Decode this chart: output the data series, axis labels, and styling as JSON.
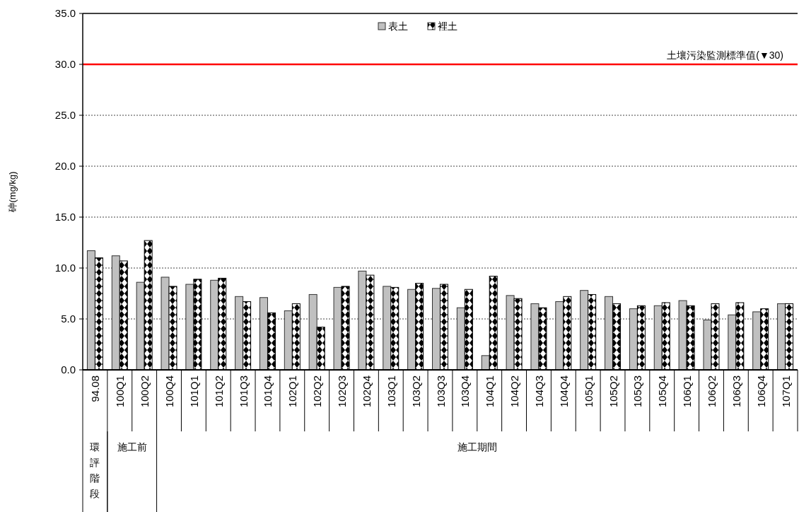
{
  "chart_data": {
    "type": "bar",
    "ylabel": "砷(mg/kg)",
    "categories": [
      "94.08",
      "100Q1",
      "100Q2",
      "100Q4",
      "101Q1",
      "101Q2",
      "101Q3",
      "101Q4",
      "102Q1",
      "102Q2",
      "102Q3",
      "102Q4",
      "103Q1",
      "103Q2",
      "103Q3",
      "103Q4",
      "104Q1",
      "104Q2",
      "104Q3",
      "104Q4",
      "105Q1",
      "105Q2",
      "105Q3",
      "105Q4",
      "106Q1",
      "106Q2",
      "106Q3",
      "106Q4",
      "107Q1"
    ],
    "series": [
      {
        "name": "表土",
        "color": "#c0c0c0",
        "values": [
          11.7,
          11.2,
          8.6,
          9.1,
          8.4,
          8.8,
          7.2,
          7.1,
          5.8,
          7.4,
          8.1,
          9.7,
          8.2,
          7.9,
          8.0,
          6.1,
          1.4,
          7.3,
          6.5,
          6.7,
          7.8,
          7.2,
          6.0,
          6.3,
          6.8,
          4.9,
          5.4,
          5.7,
          6.5
        ]
      },
      {
        "name": "裡土",
        "color": "#000000",
        "values": [
          11.0,
          10.7,
          12.7,
          8.2,
          8.9,
          9.0,
          6.7,
          5.6,
          6.5,
          4.2,
          8.2,
          9.3,
          8.1,
          8.5,
          8.4,
          7.9,
          9.2,
          7.0,
          6.1,
          7.2,
          7.4,
          6.5,
          6.3,
          6.6,
          6.3,
          6.5,
          6.6,
          6.0,
          6.5
        ]
      }
    ],
    "ylim": [
      0,
      35
    ],
    "yticks": [
      {
        "value": 0,
        "label": "0.0"
      },
      {
        "value": 5,
        "label": "5.0"
      },
      {
        "value": 10,
        "label": "10.0"
      },
      {
        "value": 15,
        "label": "15.0"
      },
      {
        "value": 20,
        "label": "20.0"
      },
      {
        "value": 25,
        "label": "25.0"
      },
      {
        "value": 30,
        "label": "30.0"
      },
      {
        "value": 35,
        "label": "35.0"
      }
    ],
    "ref_lines": [
      {
        "axis": "y",
        "value": 30,
        "label": "土壤污染監測標準值(▼30)",
        "color": "#ff0000"
      }
    ],
    "annotations": [
      "環評階段",
      "施工前",
      "施工期間"
    ],
    "grid": "y",
    "legend": "top"
  }
}
